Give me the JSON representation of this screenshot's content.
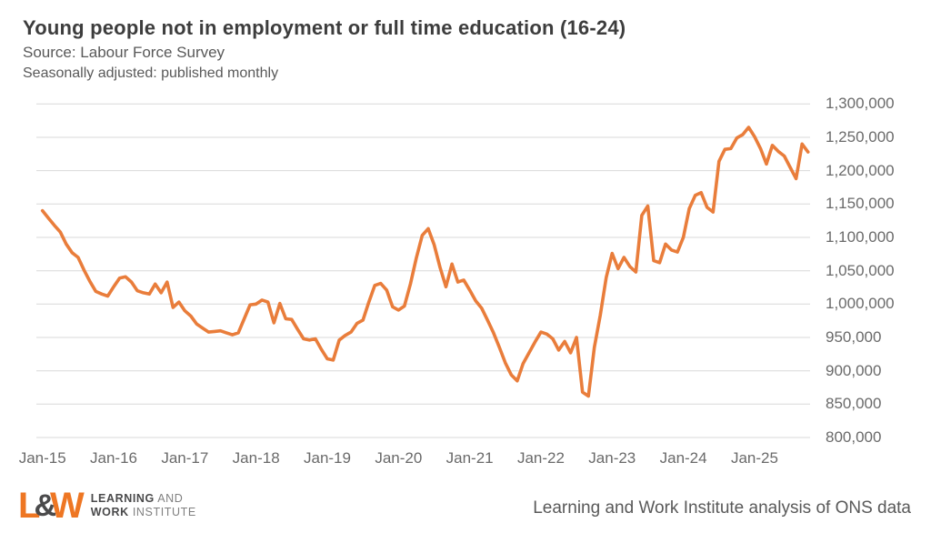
{
  "header": {
    "title": "Young people not in employment or full time education (16-24)",
    "subtitle1": "Source: Labour Force Survey",
    "subtitle2": "Seasonally adjusted: published monthly"
  },
  "footer": {
    "logo": {
      "letter_l": "L",
      "ampersand": "&",
      "letter_w": "W",
      "line1_bold": "LEARNING",
      "line1_rest": " AND",
      "line2_bold": "WORK",
      "line2_rest": " INSTITUTE",
      "orange": "#ee7623",
      "dark": "#4a4a4b"
    },
    "attribution": "Learning and Work Institute analysis of ONS data"
  },
  "chart_data": {
    "type": "line",
    "title": "Young people not in employment or full time education (16-24)",
    "subtitle": "Source: Labour Force Survey — Seasonally adjusted: published monthly",
    "xlabel": "",
    "ylabel": "",
    "grid": "horizontal",
    "gridline_color": "#d9d9d9",
    "y_axis_position": "right",
    "ylim": [
      800000,
      1300000
    ],
    "y_tick_step": 50000,
    "y_tick_labels": [
      "1,300,000",
      "1,250,000",
      "1,200,000",
      "1,150,000",
      "1,100,000",
      "1,050,000",
      "1,000,000",
      "950,000",
      "900,000",
      "850,000",
      "800,000"
    ],
    "x_tick_labels": [
      "Jan-15",
      "Jan-16",
      "Jan-17",
      "Jan-18",
      "Jan-19",
      "Jan-20",
      "Jan-21",
      "Jan-22",
      "Jan-23",
      "Jan-24",
      "Jan-25"
    ],
    "frequency": "monthly",
    "start_month": "Jan-15",
    "series": [
      {
        "name": "Young people not in employment or full time education (16-24)",
        "color": "#e97d3b",
        "values": [
          1140000,
          1129000,
          1118000,
          1108000,
          1090000,
          1077000,
          1070000,
          1051000,
          1034000,
          1019000,
          1015000,
          1012000,
          1026000,
          1039000,
          1041000,
          1033000,
          1020000,
          1017000,
          1015000,
          1030000,
          1017000,
          1033000,
          995000,
          1003000,
          990000,
          982000,
          970000,
          964000,
          958000,
          959000,
          960000,
          957000,
          954000,
          957000,
          978000,
          999000,
          1000000,
          1006000,
          1003000,
          972000,
          1001000,
          978000,
          977000,
          962000,
          948000,
          946000,
          948000,
          932000,
          918000,
          916000,
          946000,
          953000,
          958000,
          971000,
          976000,
          1003000,
          1028000,
          1031000,
          1021000,
          996000,
          991000,
          997000,
          1030000,
          1069000,
          1103000,
          1113000,
          1089000,
          1055000,
          1026000,
          1060000,
          1033000,
          1036000,
          1021000,
          1005000,
          994000,
          976000,
          957000,
          935000,
          912000,
          894000,
          885000,
          911000,
          927000,
          943000,
          958000,
          955000,
          948000,
          931000,
          944000,
          927000,
          950000,
          868000,
          862000,
          935000,
          983000,
          1040000,
          1076000,
          1053000,
          1070000,
          1056000,
          1048000,
          1133000,
          1147000,
          1065000,
          1062000,
          1090000,
          1081000,
          1078000,
          1100000,
          1143000,
          1163000,
          1167000,
          1145000,
          1138000,
          1214000,
          1232000,
          1233000,
          1249000,
          1254000,
          1265000,
          1251000,
          1233000,
          1210000,
          1238000,
          1229000,
          1222000,
          1205000,
          1188000,
          1240000,
          1228000
        ]
      }
    ]
  }
}
